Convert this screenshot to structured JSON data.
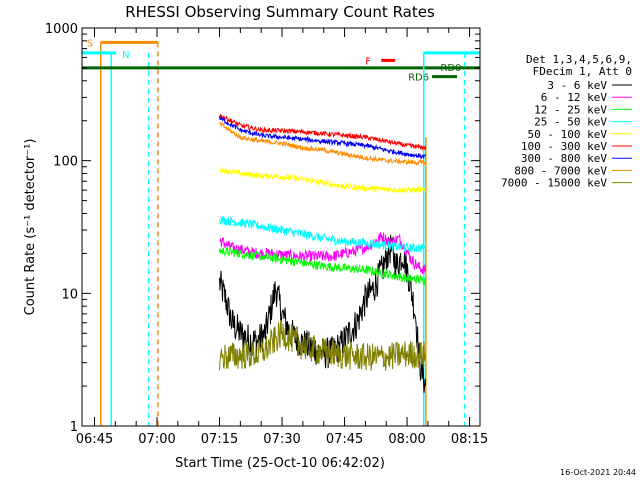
{
  "chart_data": {
    "type": "line",
    "title": "RHESSI Observing Summary Count Rates",
    "xlabel": "Start Time (25-Oct-10 06:42:02)",
    "ylabel": "Count Rate (s⁻¹ detector⁻¹)",
    "yscale": "log",
    "ylim": [
      1,
      1000
    ],
    "xlim_minutes": [
      402.0,
      497.5
    ],
    "x_ticks": [
      {
        "label": "06:45",
        "minutes": 405
      },
      {
        "label": "07:00",
        "minutes": 420
      },
      {
        "label": "07:15",
        "minutes": 435
      },
      {
        "label": "07:30",
        "minutes": 450
      },
      {
        "label": "07:45",
        "minutes": 465
      },
      {
        "label": "08:00",
        "minutes": 480
      },
      {
        "label": "08:15",
        "minutes": 495
      }
    ],
    "y_ticks": [
      {
        "label": "1",
        "value": 1
      },
      {
        "label": "10",
        "value": 10
      },
      {
        "label": "100",
        "value": 100
      },
      {
        "label": "1000",
        "value": 1000
      }
    ],
    "legend_header": [
      "Det 1,3,4,5,6,9,",
      "FDecim 1, Att 0"
    ],
    "series": [
      {
        "name": "3 - 6 keV",
        "color": "#000000",
        "x": [
          435.0,
          436.5,
          438.0,
          440.0,
          442.0,
          444.0,
          446.0,
          447.5,
          448.5,
          450.0,
          452.0,
          454.0,
          456.0,
          458.0,
          460.0,
          462.0,
          464.0,
          466.0,
          468.0,
          470.0,
          472.0,
          474.0,
          476.0,
          477.5,
          479.0,
          480.5,
          482.0,
          483.0,
          484.5
        ],
        "y": [
          12,
          9,
          6,
          5,
          4.5,
          4.3,
          5,
          8,
          11,
          7,
          5,
          4.4,
          4,
          3.8,
          3.5,
          3.6,
          4,
          5,
          6,
          9,
          11,
          15,
          22,
          16,
          20,
          13,
          7,
          3,
          2
        ]
      },
      {
        "name": "6 - 12 keV",
        "color": "#ff00ff",
        "x": [
          435.0,
          438.0,
          441.0,
          444.0,
          447.0,
          450.0,
          453.0,
          456.0,
          459.0,
          462.0,
          465.0,
          468.0,
          471.0,
          474.0,
          476.0,
          478.0,
          479.5,
          481.0,
          482.5,
          484.0,
          484.5
        ],
        "y": [
          25,
          22,
          21,
          20,
          20,
          19.5,
          19,
          19,
          19,
          19,
          20,
          21,
          23,
          27,
          24,
          26,
          22,
          18,
          16,
          15,
          15
        ]
      },
      {
        "name": "12 - 25 keV",
        "color": "#00ff00",
        "x": [
          435.0,
          440.0,
          445.0,
          450.0,
          455.0,
          460.0,
          465.0,
          470.0,
          475.0,
          480.0,
          484.5
        ],
        "y": [
          21,
          20,
          19,
          18,
          17,
          16,
          15.5,
          15,
          14,
          13,
          12.5
        ]
      },
      {
        "name": "25 - 50 keV",
        "color": "#00ffff",
        "x": [
          435.0,
          440.0,
          445.0,
          450.0,
          455.0,
          460.0,
          465.0,
          470.0,
          475.0,
          480.0,
          484.5
        ],
        "y": [
          36,
          34,
          32,
          30,
          28,
          26,
          24.5,
          24,
          23,
          22,
          22
        ]
      },
      {
        "name": "50 - 100 keV",
        "color": "#ffff00",
        "x": [
          435.0,
          440.0,
          445.0,
          450.0,
          455.0,
          460.0,
          465.0,
          470.0,
          475.0,
          480.0,
          484.5
        ],
        "y": [
          86,
          80,
          77,
          76,
          72,
          68,
          64,
          62,
          61,
          60,
          60
        ]
      },
      {
        "name": "100 - 300 keV",
        "color": "#ff0000",
        "x": [
          435.0,
          440.0,
          445.0,
          450.0,
          455.0,
          460.0,
          465.0,
          470.0,
          475.0,
          480.0,
          484.5
        ],
        "y": [
          220,
          185,
          170,
          168,
          165,
          160,
          155,
          150,
          140,
          130,
          125
        ]
      },
      {
        "name": "300 - 800 keV",
        "color": "#0000ff",
        "x": [
          435.0,
          440.0,
          445.0,
          450.0,
          455.0,
          460.0,
          465.0,
          470.0,
          475.0,
          480.0,
          484.5
        ],
        "y": [
          210,
          170,
          155,
          150,
          145,
          140,
          135,
          130,
          120,
          112,
          107
        ]
      },
      {
        "name": "800 - 7000 keV",
        "color": "#ff8c00",
        "x": [
          435.0,
          440.0,
          445.0,
          450.0,
          455.0,
          460.0,
          465.0,
          470.0,
          475.0,
          480.0,
          484.5
        ],
        "y": [
          190,
          150,
          140,
          135,
          125,
          120,
          112,
          105,
          100,
          98,
          96
        ]
      },
      {
        "name": "7000 - 15000 keV",
        "color": "#808000",
        "x": [
          435.0,
          440.0,
          445.0,
          450.0,
          455.0,
          460.0,
          465.0,
          470.0,
          475.0,
          480.0,
          484.5
        ],
        "y": [
          3.3,
          3.4,
          3.5,
          5,
          4,
          3.6,
          3.4,
          3.3,
          3.3,
          3.5,
          3.4
        ]
      }
    ],
    "flags": [
      {
        "label": "S",
        "color": "#ff8c00",
        "x_start": 406.5,
        "x_end": 420.2,
        "level": 780,
        "vline_solid": 406.5,
        "vline_dashed": 420.2
      },
      {
        "label": "N",
        "color": "#00ffff",
        "x_start": 402.0,
        "x_end": 410.2,
        "level": 650,
        "vline_solid": 409.0,
        "vline_dashed": 418.0
      },
      {
        "label": "F",
        "color": "#ff0000",
        "x_start": 473.8,
        "x_end": 479.0,
        "level": 570
      },
      {
        "label": "RD0",
        "color": "#006400",
        "x_start": 402.0,
        "x_end": 497.5,
        "level": 500
      },
      {
        "label": "RD6",
        "color": "#006400",
        "x_start": 486.0,
        "x_end": 492.0,
        "level": 430
      },
      {
        "label": "N",
        "color": "#00ffff",
        "x_start": 484.0,
        "x_end": 497.5,
        "level": 650,
        "vline_solid": 484.0,
        "vline_dashed": 493.8,
        "show_label": false
      }
    ],
    "orange_end_line": 484.5,
    "grid": false,
    "legend_position": "right"
  },
  "footer_timestamp": "16-Oct-2021 20:44"
}
